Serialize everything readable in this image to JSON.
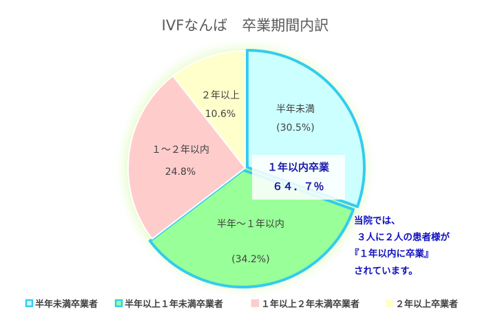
{
  "chart_data": {
    "type": "pie",
    "title": "IVFなんば　卒業期間内訳",
    "slices": [
      {
        "legend": "半年未満卒業者",
        "label": "半年未満",
        "value_label": "(30.5%)",
        "value": 30.5,
        "color": "#ccffff",
        "stroke": "#33ccee"
      },
      {
        "legend": "半年以上１年未満卒業者",
        "label": "半年～１年以内",
        "value_label": "(34.2%)",
        "value": 34.2,
        "color": "#99ff99",
        "stroke": "#33ccee"
      },
      {
        "legend": "１年以上２年未満卒業者",
        "label": "１～２年以内",
        "value_label": "24.8%",
        "value": 24.8,
        "color": "#ffcccc",
        "stroke": "#ffffff"
      },
      {
        "legend": "２年以上卒業者",
        "label": "２年以上",
        "value_label": "10.6%",
        "value": 10.6,
        "color": "#ffffcc",
        "stroke": "#ffffff"
      }
    ],
    "legend_position": "bottom",
    "inner_box": {
      "line1": "１年以内卒業",
      "line2": "６４．７％"
    },
    "note_lines": [
      "当院では、",
      "３人に２人の患者様が",
      "『１年以内に卒業』",
      "されています。"
    ]
  }
}
